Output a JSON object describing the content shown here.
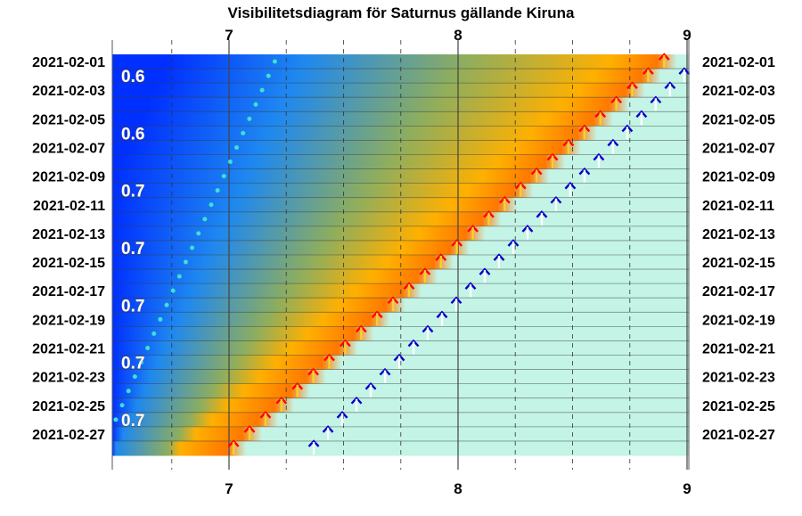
{
  "chart_data": {
    "type": "heatmap",
    "title": "Visibilitetsdiagram för Saturnus gällande Kiruna",
    "x_ticks": [
      7,
      8,
      9
    ],
    "xlim": [
      6.5,
      9.05
    ],
    "dates": [
      "2021-02-01",
      "2021-02-02",
      "2021-02-03",
      "2021-02-04",
      "2021-02-05",
      "2021-02-06",
      "2021-02-07",
      "2021-02-08",
      "2021-02-09",
      "2021-02-10",
      "2021-02-11",
      "2021-02-12",
      "2021-02-13",
      "2021-02-14",
      "2021-02-15",
      "2021-02-16",
      "2021-02-17",
      "2021-02-18",
      "2021-02-19",
      "2021-02-20",
      "2021-02-21",
      "2021-02-22",
      "2021-02-23",
      "2021-02-24",
      "2021-02-25",
      "2021-02-26",
      "2021-02-27",
      "2021-02-28"
    ],
    "date_labels": [
      "2021-02-01",
      "2021-02-03",
      "2021-02-05",
      "2021-02-07",
      "2021-02-09",
      "2021-02-11",
      "2021-02-13",
      "2021-02-15",
      "2021-02-17",
      "2021-02-19",
      "2021-02-21",
      "2021-02-23",
      "2021-02-25",
      "2021-02-27"
    ],
    "magnitudes": [
      {
        "date": "2021-02-02",
        "label": "0.6"
      },
      {
        "date": "2021-02-06",
        "label": "0.6"
      },
      {
        "date": "2021-02-10",
        "label": "0.7"
      },
      {
        "date": "2021-02-14",
        "label": "0.7"
      },
      {
        "date": "2021-02-18",
        "label": "0.7"
      },
      {
        "date": "2021-02-22",
        "label": "0.7"
      },
      {
        "date": "2021-02-26",
        "label": "0.7"
      }
    ],
    "saturn_rise_hour": {
      "first": 8.9,
      "last": 7.02
    },
    "sun_rise_hour": {
      "first": 9.05,
      "last": 7.37
    },
    "twilight_dot_hour": {
      "first": 7.2,
      "last": 6.45
    },
    "colors": {
      "night": "#0030ff",
      "mid": "#8fae5d",
      "twilight": "#ffb000",
      "dawn": "#ff7800",
      "day": "#c3f4e6",
      "saturn_arrow": "#ff0000",
      "sun_arrow": "#0000c8",
      "twilight_dot": "#40e0d0"
    }
  }
}
